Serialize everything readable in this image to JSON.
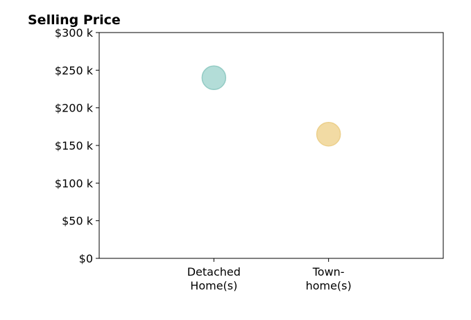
{
  "chart_data": {
    "type": "scatter",
    "title": "Selling Price",
    "xlabel": "",
    "ylabel": "",
    "categories": [
      [
        "Detached",
        "Home(s)"
      ],
      [
        "Town-",
        "home(s)"
      ]
    ],
    "values": [
      240000,
      165000
    ],
    "colors": [
      "#b3ddd8",
      "#f2dba4"
    ],
    "edge_colors": [
      "#93cbc4",
      "#ecd08c"
    ],
    "ylim": [
      0,
      300000
    ],
    "xlim": [
      0,
      3
    ],
    "x_positions": [
      1,
      2
    ],
    "y_ticks": [
      0,
      50000,
      100000,
      150000,
      200000,
      250000,
      300000
    ],
    "y_tick_labels": [
      "$0",
      "$50 k",
      "$100 k",
      "$150 k",
      "$200 k",
      "$250 k",
      "$300 k"
    ],
    "grid": false,
    "legend": "none"
  }
}
